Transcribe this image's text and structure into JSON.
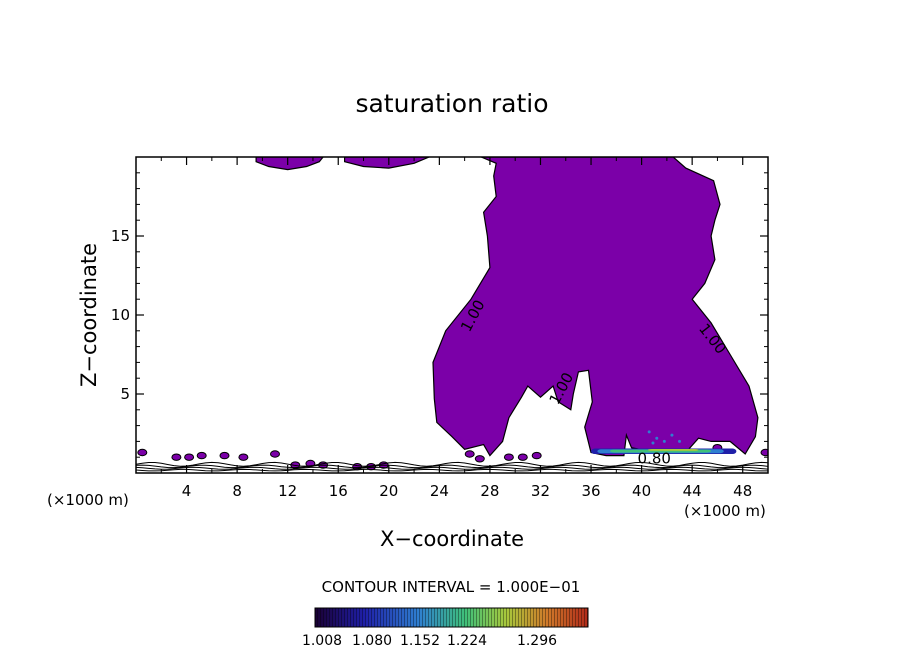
{
  "chart_data": {
    "type": "heatmap",
    "title": "saturation ratio",
    "xlabel": "X−coordinate",
    "ylabel": "Z−coordinate",
    "x_unit_label": "(×1000 m)",
    "x_unit_label_right": "(×1000 m)",
    "xlim": [
      0,
      50
    ],
    "ylim": [
      0,
      20
    ],
    "x_ticks": [
      4,
      8,
      12,
      16,
      20,
      24,
      28,
      32,
      36,
      40,
      44,
      48
    ],
    "y_ticks": [
      5,
      10,
      15
    ],
    "grid": false,
    "contour_interval_label": "CONTOUR INTERVAL = 1.000E−01",
    "contour_labels": [
      {
        "text": "1.00",
        "x": 27.0,
        "y": 9.8,
        "angle": -62
      },
      {
        "text": "1.00",
        "x": 34.0,
        "y": 5.2,
        "angle": -62
      },
      {
        "text": "1.00",
        "x": 45.3,
        "y": 8.3,
        "angle": 52
      },
      {
        "text": "0.80",
        "x": 41.0,
        "y": 0.6,
        "angle": 0
      }
    ],
    "colorbar": {
      "ticks": [
        "1.008",
        "1.080",
        "1.152",
        "1.224",
        "1.296"
      ],
      "colors": [
        "#1a0033",
        "#1f1fa8",
        "#2f7fd0",
        "#3fc07a",
        "#a8c83c",
        "#d07a2a",
        "#b02a1a"
      ]
    },
    "fill_color": "#7b00a8",
    "supersaturated_regions": [
      {
        "name": "upper-left cap 1",
        "min": 1.008,
        "boundary": [
          [
            9.5,
            19.7
          ],
          [
            10.5,
            19.4
          ],
          [
            12,
            19.2
          ],
          [
            13.5,
            19.4
          ],
          [
            14.5,
            19.7
          ],
          [
            14.8,
            20
          ],
          [
            9.5,
            20
          ]
        ]
      },
      {
        "name": "upper-left cap 2",
        "min": 1.008,
        "boundary": [
          [
            16.5,
            19.7
          ],
          [
            18,
            19.4
          ],
          [
            20,
            19.3
          ],
          [
            22,
            19.6
          ],
          [
            23.2,
            20
          ],
          [
            16.5,
            20
          ]
        ]
      },
      {
        "name": "large anvil",
        "min": 1.008,
        "boundary": [
          [
            27.3,
            20
          ],
          [
            28.5,
            19.6
          ],
          [
            28.3,
            18.8
          ],
          [
            28.5,
            17.5
          ],
          [
            27.5,
            16.5
          ],
          [
            27.8,
            15
          ],
          [
            28,
            13
          ],
          [
            26.5,
            11
          ],
          [
            24.5,
            9
          ],
          [
            23.5,
            7
          ],
          [
            23.6,
            4.7
          ],
          [
            23.8,
            3.2
          ],
          [
            25,
            2.3
          ],
          [
            26,
            1.5
          ],
          [
            27.5,
            1.8
          ],
          [
            28,
            1.1
          ],
          [
            29,
            2
          ],
          [
            29.5,
            3.5
          ],
          [
            30.5,
            4.8
          ],
          [
            31,
            5.5
          ],
          [
            32,
            4.8
          ],
          [
            33,
            5.5
          ],
          [
            33.4,
            4.5
          ],
          [
            34.4,
            4
          ],
          [
            34.6,
            5
          ],
          [
            35,
            6.4
          ],
          [
            35.8,
            6.5
          ],
          [
            36.1,
            4.5
          ],
          [
            35.5,
            2.9
          ],
          [
            36,
            1.3
          ],
          [
            37.2,
            1.1
          ],
          [
            38.6,
            1.1
          ],
          [
            38.8,
            2.4
          ],
          [
            39.2,
            1.6
          ],
          [
            40.5,
            1.4
          ],
          [
            42.6,
            1.5
          ],
          [
            43.5,
            1.3
          ],
          [
            44.5,
            2.2
          ],
          [
            45.5,
            2
          ],
          [
            47,
            2
          ],
          [
            48.2,
            1.2
          ],
          [
            49,
            2.3
          ],
          [
            49.2,
            3.5
          ],
          [
            48.5,
            5.5
          ],
          [
            47,
            7.5
          ],
          [
            45.5,
            9.5
          ],
          [
            44,
            11
          ],
          [
            45,
            12
          ],
          [
            45.8,
            13.5
          ],
          [
            45.5,
            15
          ],
          [
            45.8,
            16
          ],
          [
            46.2,
            17
          ],
          [
            45.7,
            18.5
          ],
          [
            43.5,
            19.3
          ],
          [
            42.5,
            20
          ]
        ]
      },
      {
        "name": "surface blobs",
        "min": 1.008,
        "boundary": []
      }
    ]
  }
}
